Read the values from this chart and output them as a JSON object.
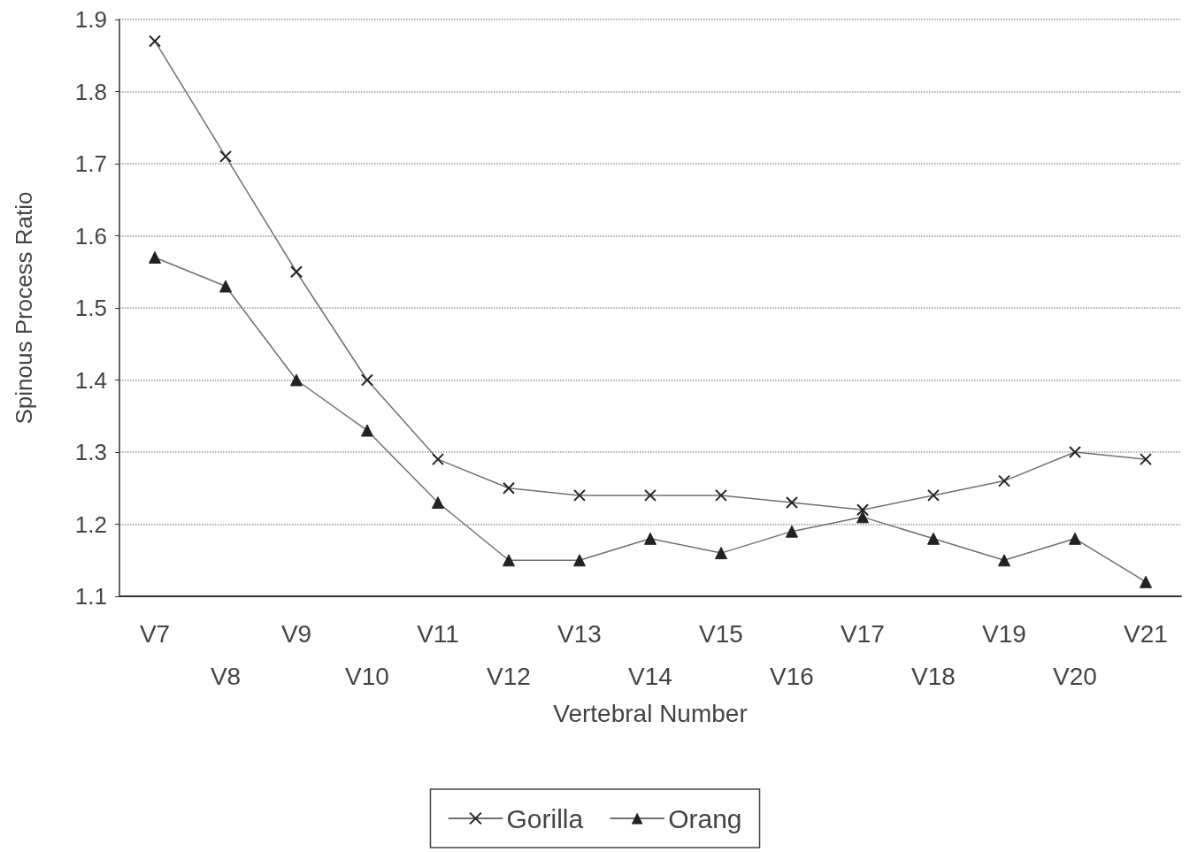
{
  "chart_data": {
    "type": "line",
    "xlabel": "Vertebral Number",
    "ylabel": "Spinous Process Ratio",
    "categories": [
      "V7",
      "V8",
      "V9",
      "V10",
      "V11",
      "V12",
      "V13",
      "V14",
      "V15",
      "V16",
      "V17",
      "V18",
      "V19",
      "V20",
      "V21"
    ],
    "series": [
      {
        "name": "Gorilla",
        "color": "#707070",
        "marker": "cross",
        "values": [
          1.87,
          1.71,
          1.55,
          1.4,
          1.29,
          1.25,
          1.24,
          1.24,
          1.24,
          1.23,
          1.22,
          1.24,
          1.26,
          1.3,
          1.29
        ]
      },
      {
        "name": "Orang",
        "color": "#707070",
        "marker": "triangle",
        "values": [
          1.57,
          1.53,
          1.4,
          1.33,
          1.23,
          1.15,
          1.15,
          1.18,
          1.16,
          1.19,
          1.21,
          1.18,
          1.15,
          1.18,
          1.12
        ]
      }
    ],
    "ylim": [
      1.1,
      1.9
    ],
    "yticks": [
      1.1,
      1.2,
      1.3,
      1.4,
      1.5,
      1.6,
      1.7,
      1.8,
      1.9
    ],
    "grid": "y",
    "legend": "bottom",
    "line_style": "solid"
  }
}
